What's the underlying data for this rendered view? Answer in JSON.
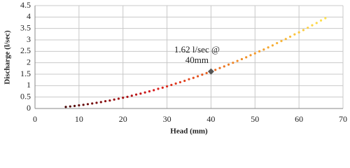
{
  "chart_data": {
    "type": "scatter",
    "x_label": "Head (mm)",
    "y_label": "Discharge (l/sec)",
    "x": [
      7,
      8,
      9,
      10,
      11,
      12,
      13,
      14,
      15,
      16,
      17,
      18,
      19,
      20,
      21,
      22,
      23,
      24,
      25,
      26,
      27,
      28,
      29,
      30,
      31,
      32,
      33,
      34,
      35,
      36,
      37,
      38,
      39,
      40,
      41,
      42,
      43,
      44,
      45,
      46,
      47,
      48,
      49,
      50,
      51,
      52,
      53,
      54,
      55,
      56,
      57,
      58,
      59,
      60,
      61,
      62,
      63,
      64,
      65,
      66
    ],
    "values": [
      0.07,
      0.09,
      0.11,
      0.14,
      0.16,
      0.19,
      0.22,
      0.25,
      0.28,
      0.32,
      0.35,
      0.39,
      0.43,
      0.47,
      0.51,
      0.56,
      0.61,
      0.65,
      0.7,
      0.75,
      0.8,
      0.86,
      0.91,
      0.97,
      1.03,
      1.09,
      1.15,
      1.21,
      1.28,
      1.34,
      1.41,
      1.48,
      1.55,
      1.62,
      1.69,
      1.77,
      1.84,
      1.92,
      2.0,
      2.08,
      2.16,
      2.24,
      2.33,
      2.41,
      2.5,
      2.58,
      2.67,
      2.76,
      2.86,
      2.95,
      3.04,
      3.14,
      3.24,
      3.33,
      3.43,
      3.53,
      3.64,
      3.74,
      3.85,
      3.95
    ],
    "color_scale": [
      "#4a0a0a",
      "#d7191c",
      "#f08a24",
      "#ffe24d"
    ],
    "annotation": {
      "text": [
        "1.62 l/sec @",
        "40mm"
      ],
      "x": 40,
      "y": 1.62,
      "color": "#555555"
    },
    "xlim": [
      0,
      70
    ],
    "xticks": [
      0,
      10,
      20,
      30,
      40,
      50,
      60,
      70
    ],
    "ylim": [
      0,
      4.5
    ],
    "yticks": [
      0,
      0.5,
      1,
      1.5,
      2,
      2.5,
      3,
      3.5,
      4,
      4.5
    ],
    "grid": true
  }
}
